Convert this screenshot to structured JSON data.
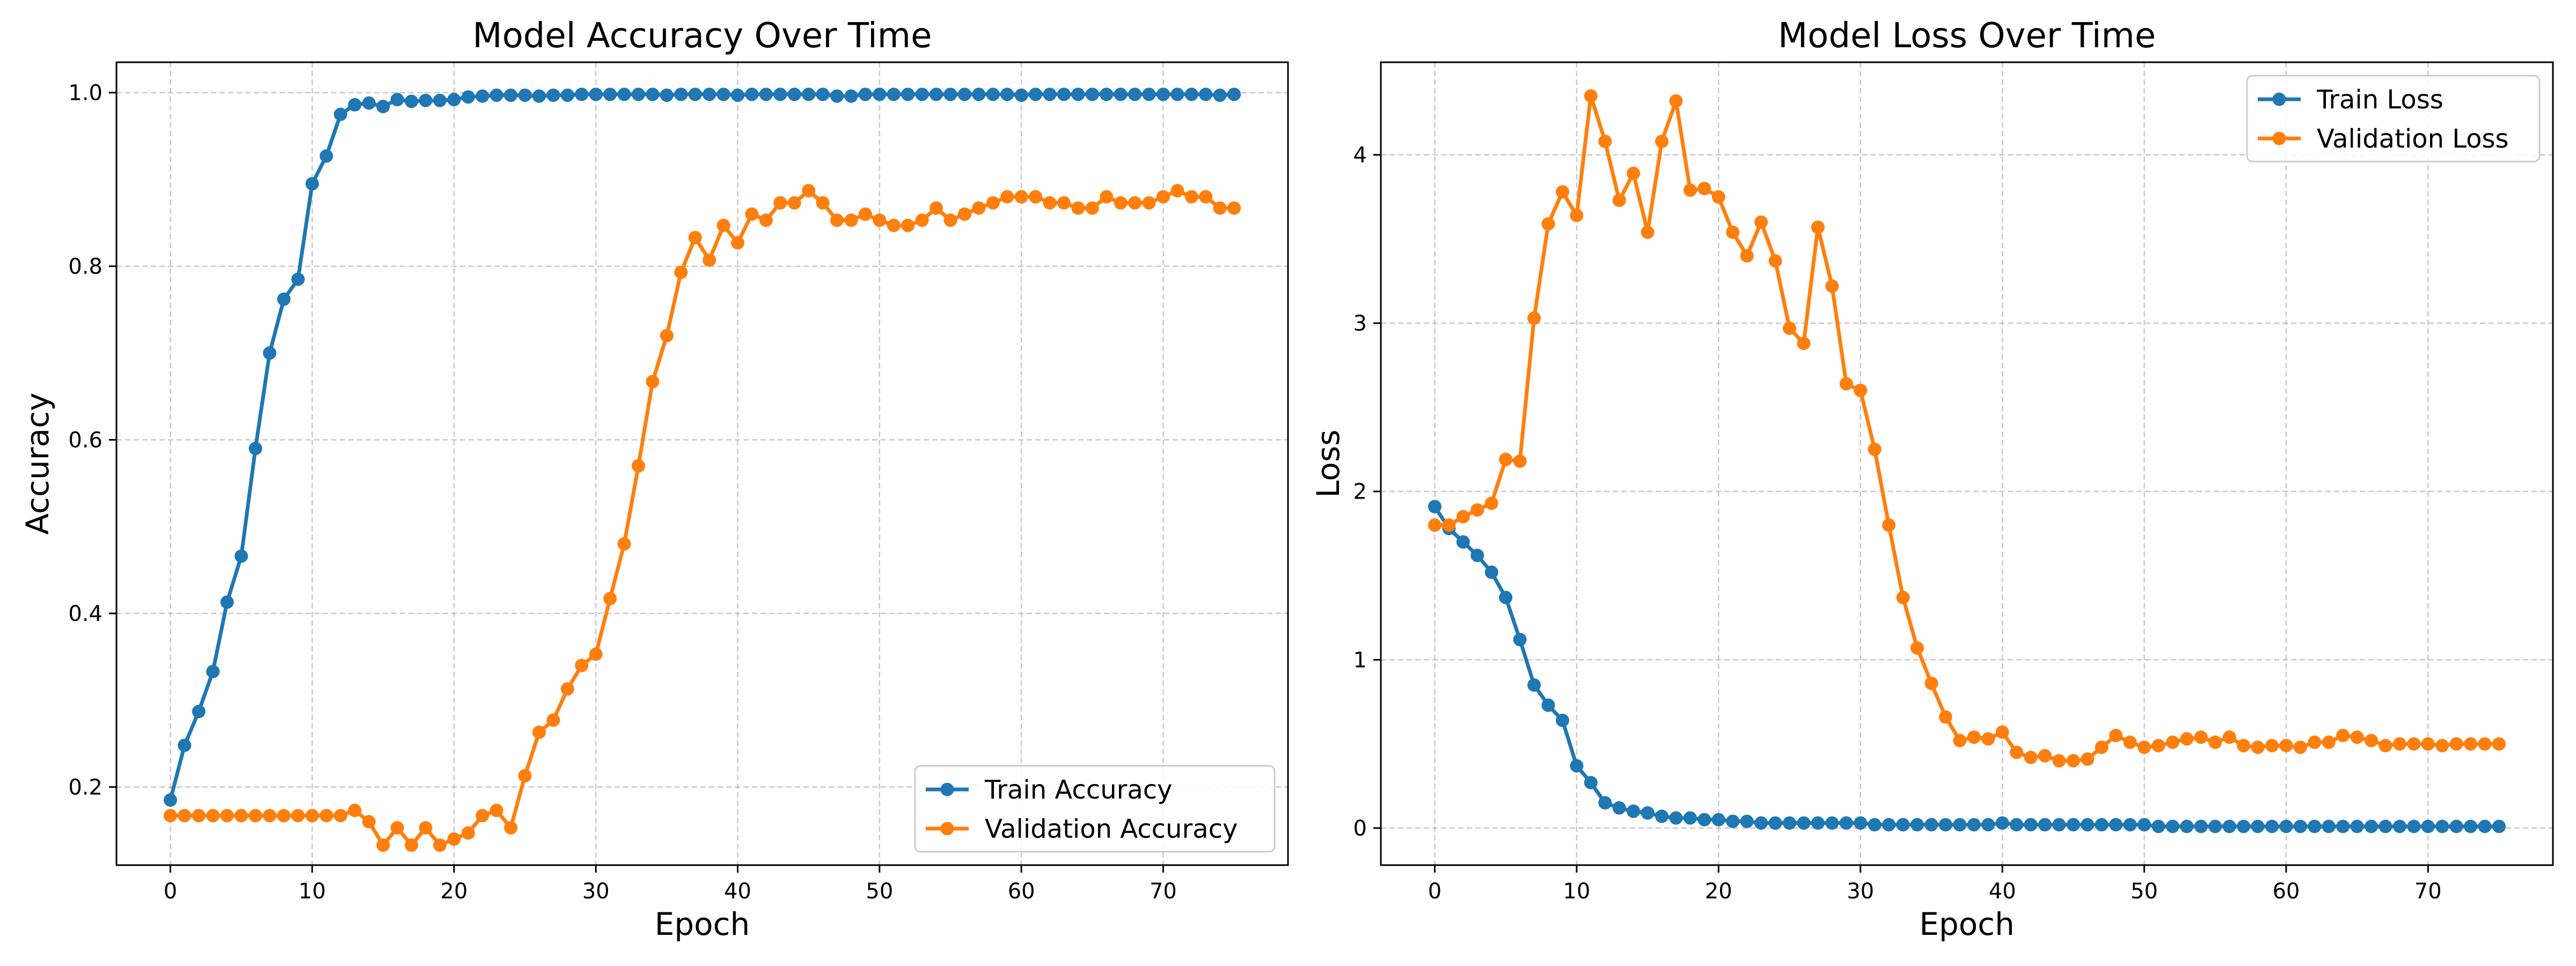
{
  "chart_data": [
    {
      "type": "line",
      "title": "Model Accuracy Over Time",
      "xlabel": "Epoch",
      "ylabel": "Accuracy",
      "xlim": [
        -3.8,
        78.8
      ],
      "ylim": [
        0.11,
        1.035
      ],
      "xticks": [
        0,
        10,
        20,
        30,
        40,
        50,
        60,
        70
      ],
      "yticks": [
        0.2,
        0.4,
        0.6,
        0.8,
        1.0
      ],
      "ytick_labels": [
        "0.2",
        "0.4",
        "0.6",
        "0.8",
        "1.0"
      ],
      "grid": true,
      "legend_position": "lower-right",
      "x_start": 0,
      "series": [
        {
          "name": "Train Accuracy",
          "color": "#1f77b4",
          "values": [
            0.185,
            0.248,
            0.287,
            0.333,
            0.413,
            0.466,
            0.59,
            0.7,
            0.762,
            0.785,
            0.895,
            0.927,
            0.975,
            0.986,
            0.988,
            0.984,
            0.992,
            0.99,
            0.991,
            0.991,
            0.992,
            0.995,
            0.996,
            0.997,
            0.997,
            0.997,
            0.996,
            0.997,
            0.997,
            0.998,
            0.998,
            0.998,
            0.998,
            0.998,
            0.998,
            0.997,
            0.998,
            0.998,
            0.998,
            0.998,
            0.997,
            0.998,
            0.998,
            0.998,
            0.998,
            0.998,
            0.998,
            0.996,
            0.996,
            0.998,
            0.998,
            0.998,
            0.998,
            0.998,
            0.998,
            0.998,
            0.998,
            0.998,
            0.998,
            0.998,
            0.997,
            0.998,
            0.998,
            0.998,
            0.998,
            0.998,
            0.998,
            0.998,
            0.998,
            0.998,
            0.998,
            0.998,
            0.998,
            0.998,
            0.997,
            0.998
          ]
        },
        {
          "name": "Validation Accuracy",
          "color": "#ff7f0e",
          "values": [
            0.167,
            0.167,
            0.167,
            0.167,
            0.167,
            0.167,
            0.167,
            0.167,
            0.167,
            0.167,
            0.167,
            0.167,
            0.167,
            0.173,
            0.16,
            0.133,
            0.153,
            0.133,
            0.153,
            0.133,
            0.14,
            0.147,
            0.167,
            0.173,
            0.153,
            0.213,
            0.263,
            0.277,
            0.313,
            0.34,
            0.353,
            0.417,
            0.48,
            0.57,
            0.667,
            0.72,
            0.793,
            0.833,
            0.807,
            0.847,
            0.827,
            0.86,
            0.853,
            0.873,
            0.873,
            0.887,
            0.873,
            0.853,
            0.853,
            0.86,
            0.853,
            0.847,
            0.847,
            0.853,
            0.867,
            0.853,
            0.86,
            0.867,
            0.873,
            0.88,
            0.88,
            0.88,
            0.873,
            0.873,
            0.867,
            0.867,
            0.88,
            0.873,
            0.873,
            0.873,
            0.88,
            0.887,
            0.88,
            0.88,
            0.867,
            0.867
          ]
        }
      ]
    },
    {
      "type": "line",
      "title": "Model Loss Over Time",
      "xlabel": "Epoch",
      "ylabel": "Loss",
      "xlim": [
        -3.8,
        78.8
      ],
      "ylim": [
        -0.22,
        4.55
      ],
      "xticks": [
        0,
        10,
        20,
        30,
        40,
        50,
        60,
        70
      ],
      "yticks": [
        0,
        1,
        2,
        3,
        4
      ],
      "ytick_labels": [
        "0",
        "1",
        "2",
        "3",
        "4"
      ],
      "grid": true,
      "legend_position": "top-right",
      "x_start": 0,
      "series": [
        {
          "name": "Train Loss",
          "color": "#1f77b4",
          "values": [
            1.91,
            1.78,
            1.7,
            1.62,
            1.52,
            1.37,
            1.12,
            0.85,
            0.73,
            0.64,
            0.37,
            0.27,
            0.15,
            0.12,
            0.1,
            0.09,
            0.07,
            0.06,
            0.06,
            0.05,
            0.05,
            0.04,
            0.04,
            0.03,
            0.03,
            0.03,
            0.03,
            0.03,
            0.03,
            0.03,
            0.03,
            0.02,
            0.02,
            0.02,
            0.02,
            0.02,
            0.02,
            0.02,
            0.02,
            0.02,
            0.03,
            0.02,
            0.02,
            0.02,
            0.02,
            0.02,
            0.02,
            0.02,
            0.02,
            0.02,
            0.02,
            0.01,
            0.01,
            0.01,
            0.01,
            0.01,
            0.01,
            0.01,
            0.01,
            0.01,
            0.01,
            0.01,
            0.01,
            0.01,
            0.01,
            0.01,
            0.01,
            0.01,
            0.01,
            0.01,
            0.01,
            0.01,
            0.01,
            0.01,
            0.01,
            0.01
          ]
        },
        {
          "name": "Validation Loss",
          "color": "#ff7f0e",
          "values": [
            1.8,
            1.8,
            1.85,
            1.89,
            1.93,
            2.19,
            2.18,
            3.03,
            3.59,
            3.78,
            3.64,
            4.35,
            4.08,
            3.73,
            3.89,
            3.54,
            4.08,
            4.32,
            3.79,
            3.8,
            3.75,
            3.54,
            3.4,
            3.6,
            3.37,
            2.97,
            2.88,
            3.57,
            3.22,
            2.64,
            2.6,
            2.25,
            1.8,
            1.37,
            1.07,
            0.86,
            0.66,
            0.52,
            0.54,
            0.53,
            0.57,
            0.45,
            0.42,
            0.43,
            0.4,
            0.4,
            0.41,
            0.48,
            0.55,
            0.51,
            0.48,
            0.49,
            0.51,
            0.53,
            0.54,
            0.51,
            0.54,
            0.49,
            0.48,
            0.49,
            0.49,
            0.48,
            0.51,
            0.51,
            0.55,
            0.54,
            0.52,
            0.49,
            0.5,
            0.5,
            0.5,
            0.49,
            0.5,
            0.5,
            0.5,
            0.5
          ]
        }
      ]
    }
  ]
}
